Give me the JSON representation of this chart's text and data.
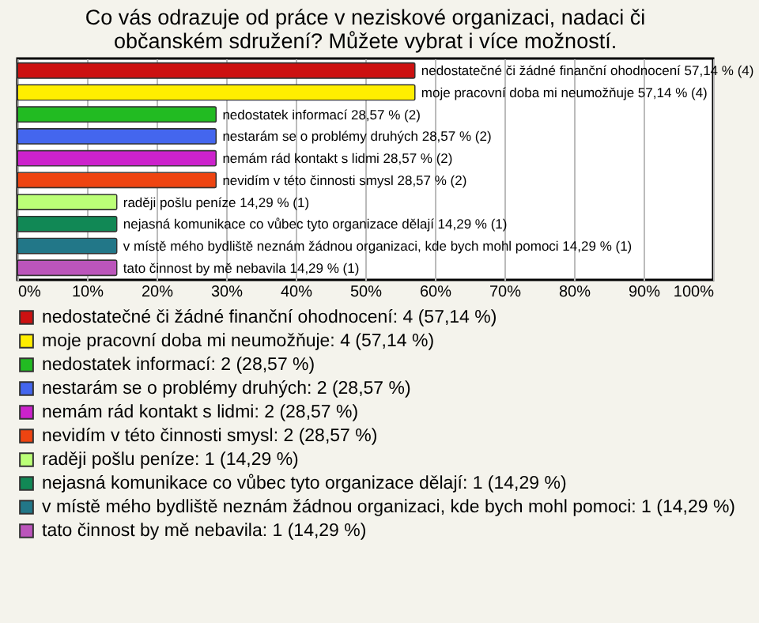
{
  "chart_data": {
    "type": "bar",
    "orientation": "horizontal",
    "title": "Co vás odrazuje od práce v neziskové organizaci, nadaci či občanském sdružení? Můžete vybrat i více možností.",
    "categories": [
      null,
      null,
      null,
      null,
      null,
      null,
      null,
      null,
      null,
      null
    ],
    "series": [
      {
        "name": "nedostatečné či žádné finanční ohodnocení: 4 (57,14 %)",
        "color": "#cc1111",
        "values": [
          57.14,
          null,
          null,
          null,
          null,
          null,
          null,
          null,
          null,
          null
        ],
        "value_labels": [
          "nedostatečné či žádné finanční ohodnocení 57,14 % (4)",
          null,
          null,
          null,
          null,
          null,
          null,
          null,
          null,
          null
        ]
      },
      {
        "name": "moje pracovní doba mi neumožňuje: 4 (57,14 %)",
        "color": "#ffee00",
        "values": [
          null,
          57.14,
          null,
          null,
          null,
          null,
          null,
          null,
          null,
          null
        ],
        "value_labels": [
          null,
          "moje pracovní doba mi neumožňuje 57,14 % (4)",
          null,
          null,
          null,
          null,
          null,
          null,
          null,
          null
        ]
      },
      {
        "name": "nedostatek informací: 2 (28,57 %)",
        "color": "#22bb22",
        "values": [
          null,
          null,
          28.57,
          null,
          null,
          null,
          null,
          null,
          null,
          null
        ],
        "value_labels": [
          null,
          null,
          "nedostatek informací 28,57 % (2)",
          null,
          null,
          null,
          null,
          null,
          null,
          null
        ]
      },
      {
        "name": "nestarám se o problémy druhých: 2 (28,57 %)",
        "color": "#4466ee",
        "values": [
          null,
          null,
          null,
          28.57,
          null,
          null,
          null,
          null,
          null,
          null
        ],
        "value_labels": [
          null,
          null,
          null,
          "nestarám se o problémy druhých 28,57 % (2)",
          null,
          null,
          null,
          null,
          null,
          null
        ]
      },
      {
        "name": "nemám rád kontakt s lidmi: 2 (28,57 %)",
        "color": "#cc22cc",
        "values": [
          null,
          null,
          null,
          null,
          28.57,
          null,
          null,
          null,
          null,
          null
        ],
        "value_labels": [
          null,
          null,
          null,
          null,
          "nemám rád kontakt s lidmi 28,57 % (2)",
          null,
          null,
          null,
          null,
          null
        ]
      },
      {
        "name": "nevidím v této činnosti smysl: 2 (28,57 %)",
        "color": "#ee4411",
        "values": [
          null,
          null,
          null,
          null,
          null,
          28.57,
          null,
          null,
          null,
          null
        ],
        "value_labels": [
          null,
          null,
          null,
          null,
          null,
          "nevidím v této činnosti smysl 28,57 % (2)",
          null,
          null,
          null,
          null
        ]
      },
      {
        "name": "raději pošlu peníze: 1 (14,29 %)",
        "color": "#bbff77",
        "values": [
          null,
          null,
          null,
          null,
          null,
          null,
          14.29,
          null,
          null,
          null
        ],
        "value_labels": [
          null,
          null,
          null,
          null,
          null,
          null,
          "raději pošlu peníze 14,29 % (1)",
          null,
          null,
          null
        ]
      },
      {
        "name": "nejasná komunikace co vůbec tyto organizace dělají: 1 (14,29 %)",
        "color": "#118855",
        "values": [
          null,
          null,
          null,
          null,
          null,
          null,
          null,
          14.29,
          null,
          null
        ],
        "value_labels": [
          null,
          null,
          null,
          null,
          null,
          null,
          null,
          "nejasná komunikace co vůbec tyto organizace dělají 14,29 % (1)",
          null,
          null
        ]
      },
      {
        "name": "v místě mého bydliště neznám žádnou organizaci, kde bych mohl pomoci: 1 (14,29 %)",
        "color": "#227788",
        "values": [
          null,
          null,
          null,
          null,
          null,
          null,
          null,
          null,
          14.29,
          null
        ],
        "value_labels": [
          null,
          null,
          null,
          null,
          null,
          null,
          null,
          null,
          "v místě mého bydliště neznám žádnou organizaci, kde bych mohl pomoci 14,29 % (1)",
          null
        ]
      },
      {
        "name": "tato činnost by mě nebavila: 1 (14,29 %)",
        "color": "#bb55bb",
        "values": [
          null,
          null,
          null,
          null,
          null,
          null,
          null,
          null,
          null,
          14.29
        ],
        "value_labels": [
          null,
          null,
          null,
          null,
          null,
          null,
          null,
          null,
          null,
          "tato činnost by mě nebavila 14,29 % (1)"
        ]
      }
    ],
    "xlim": [
      0,
      100
    ],
    "xticks": [
      {
        "value": 0,
        "label": "0%"
      },
      {
        "value": 10,
        "label": "10%"
      },
      {
        "value": 20,
        "label": "20%"
      },
      {
        "value": 30,
        "label": "30%"
      },
      {
        "value": 40,
        "label": "40%"
      },
      {
        "value": 50,
        "label": "50%"
      },
      {
        "value": 60,
        "label": "60%"
      },
      {
        "value": 70,
        "label": "70%"
      },
      {
        "value": 80,
        "label": "80%"
      },
      {
        "value": 90,
        "label": "90%"
      },
      {
        "value": 100,
        "label": "100%"
      }
    ],
    "grid": true,
    "legend": "bottom",
    "tick_labels": "x"
  }
}
